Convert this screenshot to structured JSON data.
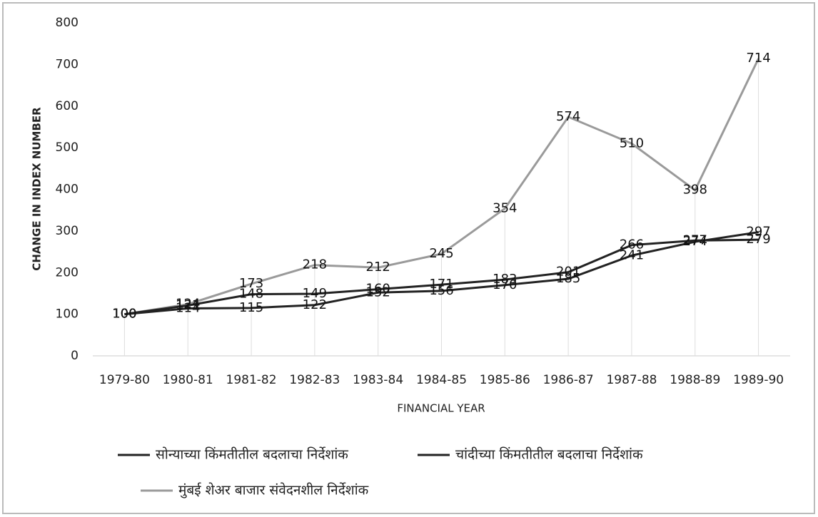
{
  "chart_data": {
    "type": "line",
    "categories": [
      "1979-80",
      "1980-81",
      "1981-82",
      "1982-83",
      "1983-84",
      "1984-85",
      "1985-86",
      "1986-87",
      "1987-88",
      "1988-89",
      "1989-90"
    ],
    "series": [
      {
        "name": "सोन्याच्या किंमतीतील बदलाचा निर्देशांक",
        "color": "#222222",
        "values": [
          100,
          121,
          148,
          149,
          160,
          171,
          183,
          201,
          266,
          277,
          279
        ]
      },
      {
        "name": "चांदीच्या किंमतीतील बदलाचा निर्देशांक",
        "color": "#222222",
        "values": [
          100,
          114,
          115,
          122,
          152,
          156,
          170,
          185,
          241,
          274,
          297
        ]
      },
      {
        "name": "मुंबई शेअर बाजार संवेदनशील निर्देशांक",
        "color": "#9a9a9a",
        "values": [
          100,
          124,
          173,
          218,
          212,
          245,
          354,
          574,
          510,
          398,
          714
        ]
      }
    ],
    "ylim": [
      0,
      800
    ],
    "yticks": [
      0,
      100,
      200,
      300,
      400,
      500,
      600,
      700,
      800
    ],
    "ylabel": "CHANGE IN INDEX NUMBER",
    "xlabel": "FINANCIAL YEAR",
    "legend": "bottom"
  }
}
